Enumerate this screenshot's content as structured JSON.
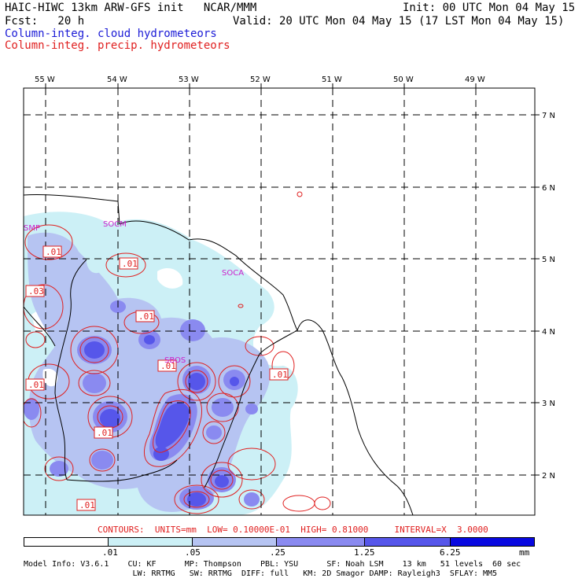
{
  "header": {
    "left_line1": "HAIC-HIWC 13km ARW-GFS init   NCAR/MMM",
    "left_line2": "Fcst:   20 h",
    "right_line1": "Init: 00 UTC Mon 04 May 15",
    "right_line2": "Valid: 20 UTC Mon 04 May 15 (17 LST Mon 04 May 15)",
    "legend_cloud": "Column-integ. cloud hydrometeors",
    "legend_precip": "Column-integ. precip. hydrometeors",
    "colors": {
      "cloud": "#1a1ad6",
      "precip": "#e02020"
    }
  },
  "map": {
    "lon_labels": [
      "55 W",
      "54 W",
      "53 W",
      "52 W",
      "51 W",
      "50 W",
      "49 W"
    ],
    "lat_labels": [
      "7 N",
      "6 N",
      "5 N",
      "4 N",
      "3 N",
      "2 N"
    ],
    "stations": [
      "SMP",
      "SOCM",
      "SOCA",
      "SBOS"
    ],
    "contour_labels": [
      ".01",
      ".01",
      ".03",
      ".01",
      ".01",
      ".01",
      ".01",
      ".01",
      ".01"
    ]
  },
  "contour_info": "CONTOURS:  UNITS=mm  LOW= 0.10000E-01  HIGH= 0.81000     INTERVAL=X  3.0000",
  "colorbar": {
    "labels": [
      ".01",
      ".05",
      ".25",
      "1.25",
      "6.25"
    ],
    "units": "mm",
    "colors": [
      "#ffffff",
      "#ccf0f6",
      "#b6c4f2",
      "#8a8af0",
      "#5656ea",
      "#2a2ae4",
      "#0808e0"
    ]
  },
  "model_info": {
    "line1": "Model Info: V3.6.1    CU: KF      MP: Thompson    PBL: YSU      SF: Noah LSM    13 km   51 levels  60 sec",
    "line2": "                       LW: RRTMG   SW: RRTMG  DIFF: full   KM: 2D Smagor DAMP: Rayleigh3  SFLAY: MM5"
  }
}
